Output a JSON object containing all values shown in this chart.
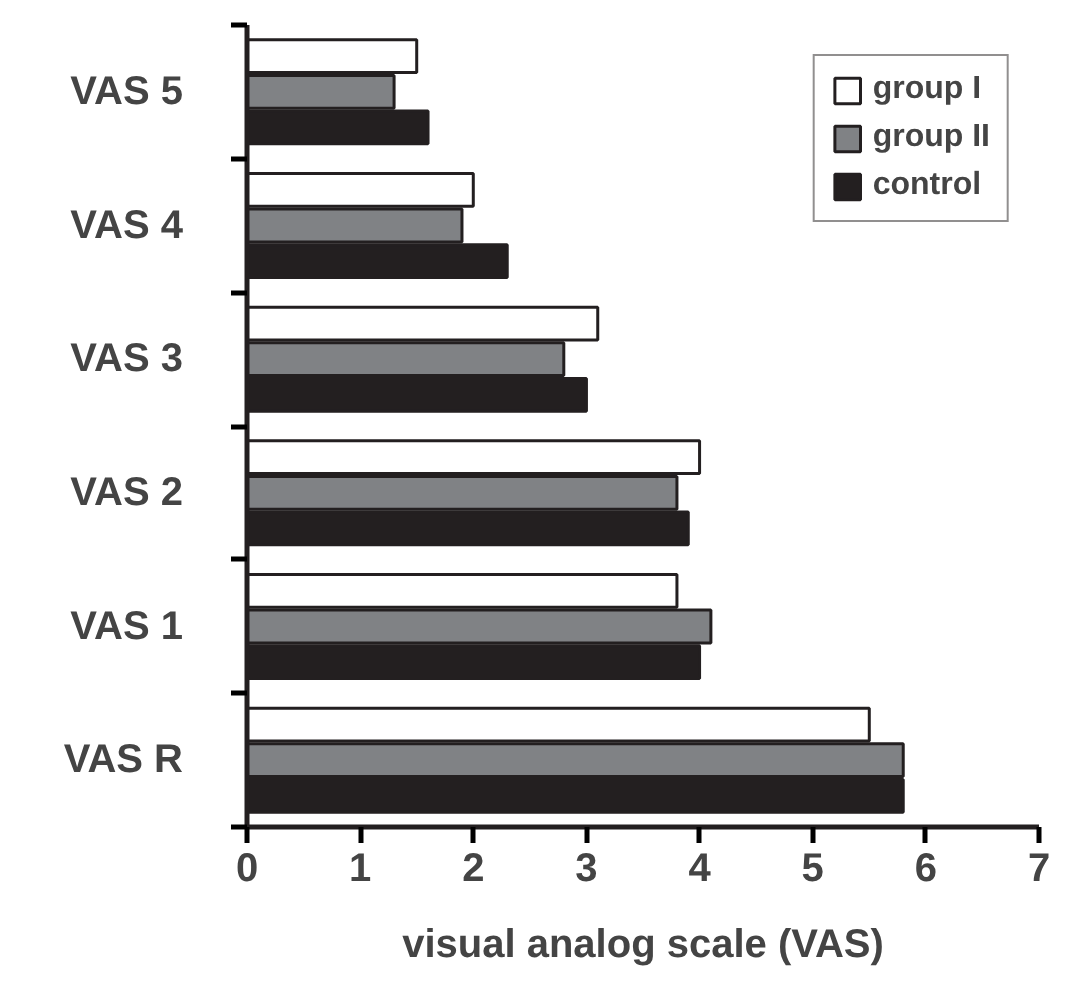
{
  "chart_data": {
    "type": "bar",
    "orientation": "horizontal",
    "xlabel": "visual analog scale (VAS)",
    "categories": [
      "VAS 5",
      "VAS 4",
      "VAS 3",
      "VAS 2",
      "VAS 1",
      "VAS R"
    ],
    "series": [
      {
        "name": "group I",
        "color": "#ffffff",
        "values": [
          1.5,
          2.0,
          3.1,
          4.0,
          3.8,
          5.5
        ]
      },
      {
        "name": "group II",
        "color": "#808285",
        "values": [
          1.3,
          1.9,
          2.8,
          3.8,
          4.1,
          5.8
        ]
      },
      {
        "name": "control",
        "color": "#231f20",
        "values": [
          1.6,
          2.3,
          3.0,
          3.9,
          4.0,
          5.8
        ]
      }
    ],
    "xlim": [
      0,
      7
    ],
    "xticks": [
      0,
      1,
      2,
      3,
      4,
      5,
      6,
      7
    ],
    "grid": false,
    "legend": "top right"
  }
}
